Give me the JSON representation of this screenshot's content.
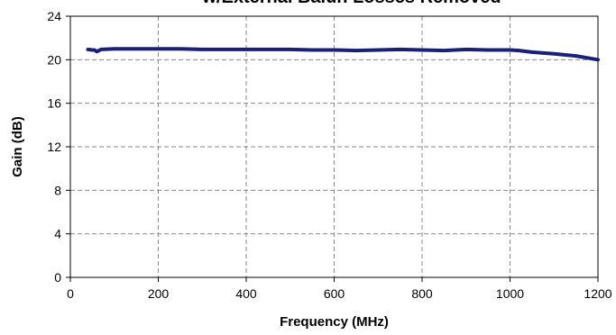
{
  "chart_data": {
    "type": "line",
    "title": "w/External Balun Losses Removed",
    "xlabel": "Frequency (MHz)",
    "ylabel": "Gain (dB)",
    "xlim": [
      0,
      1200
    ],
    "ylim": [
      0,
      24
    ],
    "xticks": [
      0,
      200,
      400,
      600,
      800,
      1000,
      1200
    ],
    "yticks": [
      0,
      4,
      8,
      12,
      16,
      20,
      24
    ],
    "grid": true,
    "legend": "none",
    "series_color": "#1a1f7a",
    "series": [
      {
        "x": [
          40,
          50,
          55,
          60,
          70,
          100,
          150,
          200,
          250,
          300,
          350,
          400,
          450,
          500,
          550,
          600,
          650,
          700,
          750,
          800,
          850,
          900,
          950,
          1000,
          1020,
          1050,
          1100,
          1150,
          1200
        ],
        "y": [
          20.95,
          20.9,
          20.9,
          20.75,
          20.95,
          21.0,
          21.0,
          21.0,
          21.0,
          20.95,
          20.95,
          20.95,
          20.95,
          20.95,
          20.9,
          20.9,
          20.85,
          20.9,
          20.95,
          20.9,
          20.85,
          20.95,
          20.9,
          20.9,
          20.85,
          20.7,
          20.55,
          20.35,
          20.0
        ]
      }
    ]
  }
}
